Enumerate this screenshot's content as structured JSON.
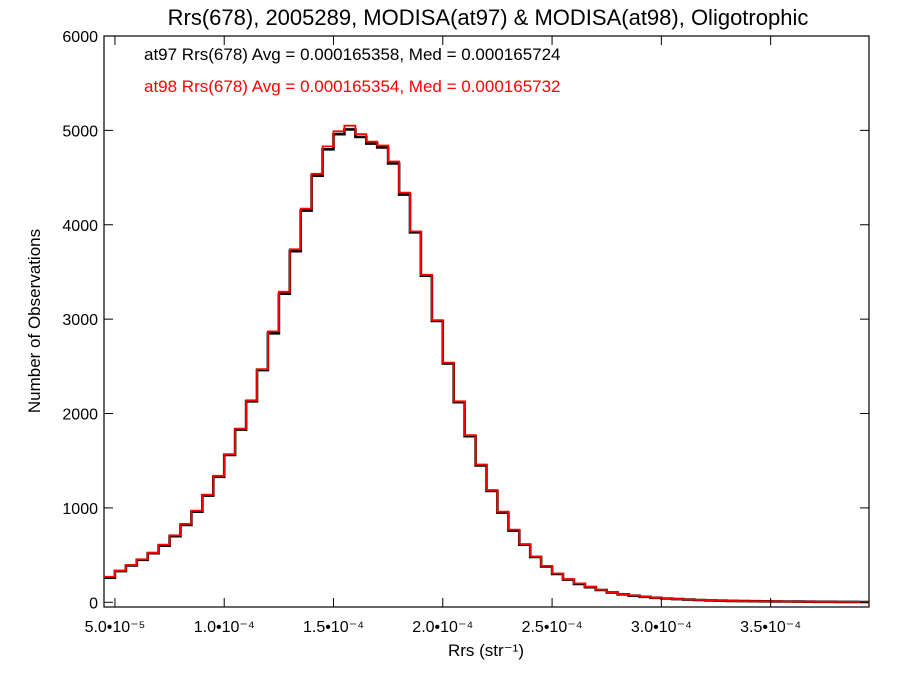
{
  "chart_data": {
    "type": "line",
    "title": "Rrs(678), 2005289, MODISA(at97) & MODISA(at98), Oligotrophic",
    "xlabel": "Rrs (str⁻¹)",
    "ylabel": "Number of Observations",
    "xlim": [
      4.5e-05,
      0.000395
    ],
    "ylim": [
      -50,
      6000
    ],
    "xticks": [
      {
        "value": 5e-05,
        "label": "5.0•10⁻⁵"
      },
      {
        "value": 0.0001,
        "label": "1.0•10⁻⁴"
      },
      {
        "value": 0.00015,
        "label": "1.5•10⁻⁴"
      },
      {
        "value": 0.0002,
        "label": "2.0•10⁻⁴"
      },
      {
        "value": 0.00025,
        "label": "2.5•10⁻⁴"
      },
      {
        "value": 0.0003,
        "label": "3.0•10⁻⁴"
      },
      {
        "value": 0.00035,
        "label": "3.5•10⁻⁴"
      }
    ],
    "yticks": [
      {
        "value": 0,
        "label": "0"
      },
      {
        "value": 1000,
        "label": "1000"
      },
      {
        "value": 2000,
        "label": "2000"
      },
      {
        "value": 3000,
        "label": "3000"
      },
      {
        "value": 4000,
        "label": "4000"
      },
      {
        "value": 5000,
        "label": "5000"
      },
      {
        "value": 6000,
        "label": "6000"
      }
    ],
    "grid": false,
    "legend_position": "top-left",
    "series": [
      {
        "name": "at97 Rrs(678) Avg = 0.000165358, Med = 0.000165724",
        "color": "#000000",
        "x": [
          4.5e-05,
          5e-05,
          5.5e-05,
          6e-05,
          6.5e-05,
          7e-05,
          7.5e-05,
          8e-05,
          8.5e-05,
          9e-05,
          9.5e-05,
          0.0001,
          0.000105,
          0.00011,
          0.000115,
          0.00012,
          0.000125,
          0.00013,
          0.000135,
          0.00014,
          0.000145,
          0.00015,
          0.000155,
          0.00016,
          0.000165,
          0.00017,
          0.000175,
          0.00018,
          0.000185,
          0.00019,
          0.000195,
          0.0002,
          0.000205,
          0.00021,
          0.000215,
          0.00022,
          0.000225,
          0.00023,
          0.000235,
          0.00024,
          0.000245,
          0.00025,
          0.000255,
          0.00026,
          0.000265,
          0.00027,
          0.000275,
          0.00028,
          0.000285,
          0.00029,
          0.000295,
          0.0003,
          0.000305,
          0.00031,
          0.000315,
          0.00032,
          0.000325,
          0.00033,
          0.000335,
          0.00034,
          0.000345,
          0.00035,
          0.000355,
          0.00036,
          0.000365,
          0.00037,
          0.000375,
          0.00038,
          0.000385,
          0.00039,
          0.000395
        ],
        "y": [
          260,
          330,
          390,
          450,
          520,
          600,
          700,
          820,
          960,
          1130,
          1330,
          1560,
          1830,
          2130,
          2460,
          2850,
          3270,
          3720,
          4150,
          4520,
          4800,
          4960,
          5010,
          4930,
          4860,
          4820,
          4650,
          4320,
          3920,
          3460,
          2980,
          2530,
          2120,
          1760,
          1450,
          1180,
          950,
          760,
          610,
          480,
          380,
          300,
          240,
          195,
          160,
          130,
          105,
          85,
          70,
          58,
          48,
          40,
          34,
          28,
          24,
          20,
          17,
          15,
          13,
          11,
          10,
          9,
          8,
          7,
          6,
          5,
          5,
          4,
          4,
          3,
          3
        ]
      },
      {
        "name": "at98 Rrs(678) Avg = 0.000165354, Med = 0.000165732",
        "color": "#ff0000",
        "x": [
          4.5e-05,
          5e-05,
          5.5e-05,
          6e-05,
          6.5e-05,
          7e-05,
          7.5e-05,
          8e-05,
          8.5e-05,
          9e-05,
          9.5e-05,
          0.0001,
          0.000105,
          0.00011,
          0.000115,
          0.00012,
          0.000125,
          0.00013,
          0.000135,
          0.00014,
          0.000145,
          0.00015,
          0.000155,
          0.00016,
          0.000165,
          0.00017,
          0.000175,
          0.00018,
          0.000185,
          0.00019,
          0.000195,
          0.0002,
          0.000205,
          0.00021,
          0.000215,
          0.00022,
          0.000225,
          0.00023,
          0.000235,
          0.00024,
          0.000245,
          0.00025,
          0.000255,
          0.00026,
          0.000265,
          0.00027,
          0.000275,
          0.00028,
          0.000285,
          0.00029,
          0.000295,
          0.0003,
          0.000305,
          0.00031,
          0.000315,
          0.00032,
          0.000325,
          0.00033,
          0.000335,
          0.00034,
          0.000345,
          0.00035,
          0.000355,
          0.00036,
          0.000365,
          0.00037,
          0.000375,
          0.00038,
          0.000385,
          0.00039,
          0.000395
        ],
        "y": [
          270,
          335,
          395,
          455,
          525,
          610,
          710,
          830,
          970,
          1140,
          1340,
          1570,
          1840,
          2140,
          2470,
          2870,
          3290,
          3740,
          4170,
          4540,
          4830,
          4990,
          5050,
          4960,
          4880,
          4840,
          4670,
          4340,
          3930,
          3470,
          2990,
          2540,
          2130,
          1770,
          1460,
          1190,
          960,
          770,
          615,
          485,
          385,
          305,
          245,
          200,
          165,
          133,
          108,
          87,
          72,
          59,
          49,
          41,
          35,
          29,
          25,
          21,
          18,
          15,
          13,
          11,
          10,
          9,
          8,
          7,
          6,
          5,
          5,
          4,
          4,
          3,
          3
        ]
      }
    ]
  }
}
